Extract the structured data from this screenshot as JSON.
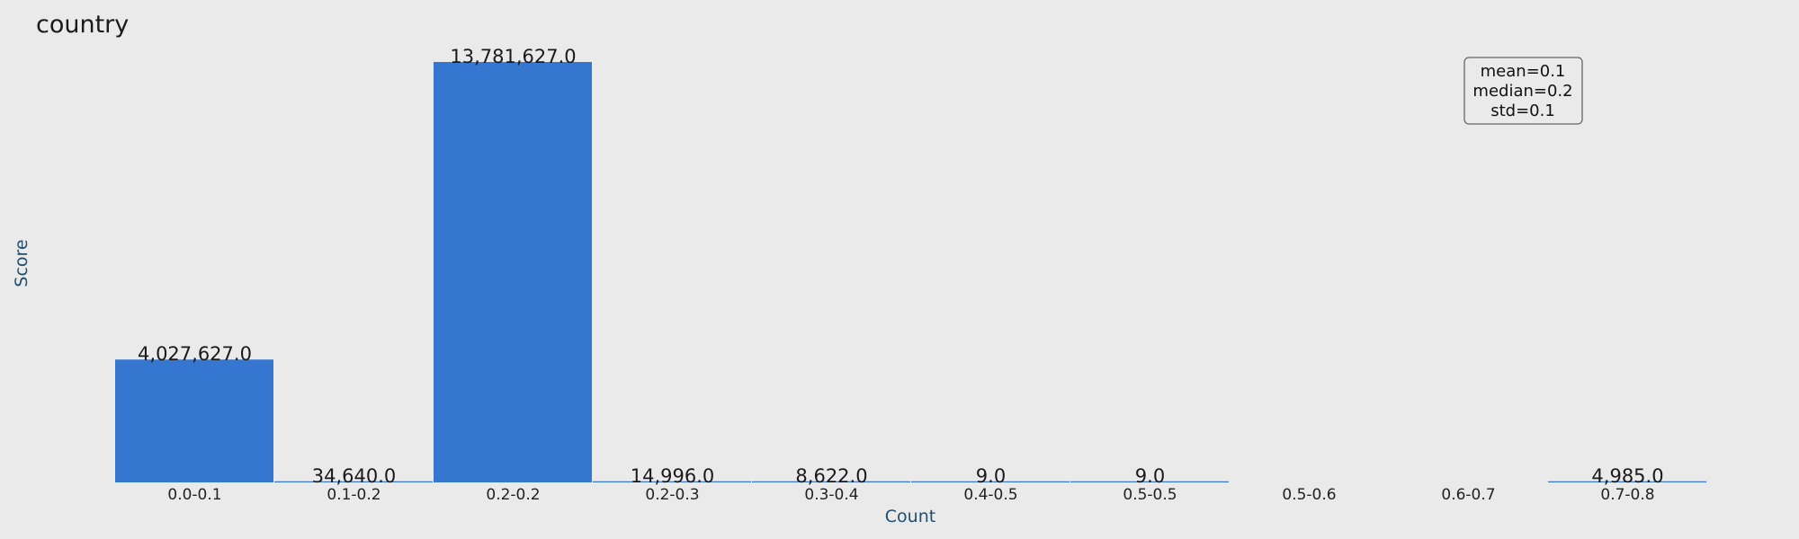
{
  "chart_data": {
    "type": "bar",
    "title": "country",
    "xlabel": "Count",
    "ylabel": "Score",
    "categories": [
      "0.0-0.1",
      "0.1-0.2",
      "0.2-0.2",
      "0.2-0.3",
      "0.3-0.4",
      "0.4-0.5",
      "0.5-0.5",
      "0.5-0.6",
      "0.6-0.7",
      "0.7-0.8"
    ],
    "values": [
      4027627,
      34640,
      13781627,
      14996,
      8622,
      9,
      9,
      0,
      0,
      4985
    ],
    "value_labels": [
      "4,027,627.0",
      "34,640.0",
      "13,781,627.0",
      "14,996.0",
      "8,622.0",
      "9.0",
      "9.0",
      "",
      "",
      "4,985.0"
    ],
    "ylim": [
      0,
      13781627
    ],
    "grid": false,
    "bar_color": "#3576d0",
    "stats": [
      "mean=0.1",
      "median=0.2",
      "std=0.1"
    ],
    "stats_placement": "top-right"
  }
}
